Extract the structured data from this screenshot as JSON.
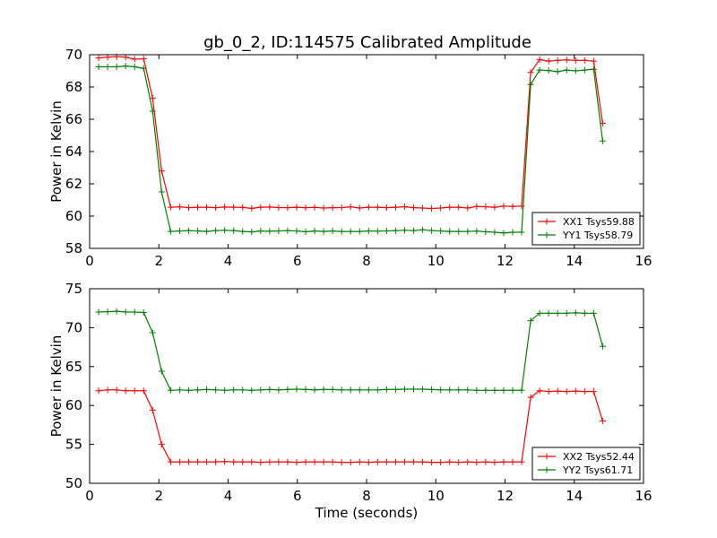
{
  "figure_title": "gb_0_2, ID:114575 Calibrated Amplitude",
  "chart_data": [
    {
      "type": "line",
      "title": "gb_0_2, ID:114575 Calibrated Amplitude",
      "xlabel": "",
      "ylabel": "Power in Kelvin",
      "xlim": [
        0,
        16
      ],
      "ylim": [
        58,
        70
      ],
      "xticks": [
        0,
        2,
        4,
        6,
        8,
        10,
        12,
        14,
        16
      ],
      "yticks": [
        58,
        60,
        62,
        64,
        66,
        68,
        70
      ],
      "xtick_labels": [
        "0",
        "2",
        "4",
        "6",
        "8",
        "10",
        "12",
        "14",
        "16"
      ],
      "ytick_labels": [
        "58",
        "60",
        "62",
        "64",
        "66",
        "68",
        "70"
      ],
      "grid": false,
      "legend_position": "lower-right",
      "series": [
        {
          "name": "XX1 Tsys59.88",
          "color": "#ff0000",
          "marker": "+",
          "x": [
            0.26,
            0.52,
            0.78,
            1.04,
            1.3,
            1.56,
            1.82,
            2.08,
            2.34,
            2.6,
            2.86,
            3.12,
            3.38,
            3.64,
            3.9,
            4.16,
            4.42,
            4.68,
            4.94,
            5.2,
            5.46,
            5.72,
            5.98,
            6.24,
            6.5,
            6.76,
            7.02,
            7.28,
            7.54,
            7.8,
            8.06,
            8.32,
            8.58,
            8.84,
            9.1,
            9.36,
            9.62,
            9.88,
            10.14,
            10.4,
            10.66,
            10.92,
            11.18,
            11.44,
            11.7,
            11.96,
            12.22,
            12.48,
            12.74,
            13.0,
            13.26,
            13.52,
            13.78,
            14.04,
            14.3,
            14.56,
            14.82
          ],
          "y": [
            69.8,
            69.85,
            69.87,
            69.85,
            69.72,
            69.75,
            67.3,
            62.8,
            60.55,
            60.57,
            60.52,
            60.55,
            60.55,
            60.52,
            60.56,
            60.55,
            60.54,
            60.48,
            60.55,
            60.56,
            60.53,
            60.52,
            60.55,
            60.52,
            60.54,
            60.5,
            60.52,
            60.53,
            60.57,
            60.5,
            60.55,
            60.55,
            60.52,
            60.55,
            60.58,
            60.52,
            60.5,
            60.47,
            60.5,
            60.55,
            60.55,
            60.5,
            60.6,
            60.58,
            60.55,
            60.62,
            60.6,
            60.62,
            68.9,
            69.7,
            69.6,
            69.65,
            69.68,
            69.65,
            69.65,
            69.6,
            65.75
          ]
        },
        {
          "name": "YY1 Tsys58.79",
          "color": "#008000",
          "marker": "+",
          "x": [
            0.26,
            0.52,
            0.78,
            1.04,
            1.3,
            1.56,
            1.82,
            2.08,
            2.34,
            2.6,
            2.86,
            3.12,
            3.38,
            3.64,
            3.9,
            4.16,
            4.42,
            4.68,
            4.94,
            5.2,
            5.46,
            5.72,
            5.98,
            6.24,
            6.5,
            6.76,
            7.02,
            7.28,
            7.54,
            7.8,
            8.06,
            8.32,
            8.58,
            8.84,
            9.1,
            9.36,
            9.62,
            9.88,
            10.14,
            10.4,
            10.66,
            10.92,
            11.18,
            11.44,
            11.7,
            11.96,
            12.22,
            12.48,
            12.74,
            13.0,
            13.26,
            13.52,
            13.78,
            14.04,
            14.3,
            14.56,
            14.82
          ],
          "y": [
            69.25,
            69.25,
            69.25,
            69.3,
            69.25,
            69.15,
            66.5,
            61.5,
            59.05,
            59.08,
            59.1,
            59.08,
            59.05,
            59.1,
            59.12,
            59.1,
            59.05,
            59.02,
            59.08,
            59.06,
            59.08,
            59.1,
            59.08,
            59.03,
            59.08,
            59.05,
            59.08,
            59.05,
            59.05,
            59.05,
            59.08,
            59.07,
            59.08,
            59.1,
            59.12,
            59.1,
            59.15,
            59.1,
            59.08,
            59.05,
            59.05,
            59.05,
            59.07,
            59.03,
            59.0,
            58.95,
            59.0,
            59.0,
            68.15,
            69.05,
            69.02,
            68.95,
            69.05,
            69.0,
            69.05,
            69.1,
            64.65
          ]
        }
      ]
    },
    {
      "type": "line",
      "title": "",
      "xlabel": "Time (seconds)",
      "ylabel": "Power in Kelvin",
      "xlim": [
        0,
        16
      ],
      "ylim": [
        50,
        75
      ],
      "xticks": [
        0,
        2,
        4,
        6,
        8,
        10,
        12,
        14,
        16
      ],
      "yticks": [
        50,
        55,
        60,
        65,
        70,
        75
      ],
      "xtick_labels": [
        "0",
        "2",
        "4",
        "6",
        "8",
        "10",
        "12",
        "14",
        "16"
      ],
      "ytick_labels": [
        "50",
        "55",
        "60",
        "65",
        "70",
        "75"
      ],
      "grid": false,
      "legend_position": "lower-right",
      "series": [
        {
          "name": "XX2 Tsys52.44",
          "color": "#ff0000",
          "marker": "+",
          "x": [
            0.26,
            0.52,
            0.78,
            1.04,
            1.3,
            1.56,
            1.82,
            2.08,
            2.34,
            2.6,
            2.86,
            3.12,
            3.38,
            3.64,
            3.9,
            4.16,
            4.42,
            4.68,
            4.94,
            5.2,
            5.46,
            5.72,
            5.98,
            6.24,
            6.5,
            6.76,
            7.02,
            7.28,
            7.54,
            7.8,
            8.06,
            8.32,
            8.58,
            8.84,
            9.1,
            9.36,
            9.62,
            9.88,
            10.14,
            10.4,
            10.66,
            10.92,
            11.18,
            11.44,
            11.7,
            11.96,
            12.22,
            12.48,
            12.74,
            13.0,
            13.26,
            13.52,
            13.78,
            14.04,
            14.3,
            14.56,
            14.82
          ],
          "y": [
            61.9,
            62.0,
            62.0,
            61.9,
            61.9,
            61.9,
            59.4,
            55.0,
            52.75,
            52.75,
            52.75,
            52.75,
            52.75,
            52.75,
            52.8,
            52.75,
            52.75,
            52.75,
            52.7,
            52.75,
            52.75,
            52.75,
            52.7,
            52.75,
            52.75,
            52.75,
            52.75,
            52.7,
            52.7,
            52.75,
            52.7,
            52.75,
            52.75,
            52.75,
            52.75,
            52.75,
            52.75,
            52.7,
            52.7,
            52.75,
            52.7,
            52.75,
            52.7,
            52.75,
            52.7,
            52.75,
            52.75,
            52.75,
            61.05,
            61.9,
            61.8,
            61.85,
            61.8,
            61.85,
            61.8,
            61.8,
            58.0
          ]
        },
        {
          "name": "YY2 Tsys61.71",
          "color": "#008000",
          "marker": "+",
          "x": [
            0.26,
            0.52,
            0.78,
            1.04,
            1.3,
            1.56,
            1.82,
            2.08,
            2.34,
            2.6,
            2.86,
            3.12,
            3.38,
            3.64,
            3.9,
            4.16,
            4.42,
            4.68,
            4.94,
            5.2,
            5.46,
            5.72,
            5.98,
            6.24,
            6.5,
            6.76,
            7.02,
            7.28,
            7.54,
            7.8,
            8.06,
            8.32,
            8.58,
            8.84,
            9.1,
            9.36,
            9.62,
            9.88,
            10.14,
            10.4,
            10.66,
            10.92,
            11.18,
            11.44,
            11.7,
            11.96,
            12.22,
            12.48,
            12.74,
            13.0,
            13.26,
            13.52,
            13.78,
            14.04,
            14.3,
            14.56,
            14.82
          ],
          "y": [
            72.0,
            72.05,
            72.1,
            72.0,
            72.0,
            71.95,
            69.35,
            64.4,
            61.95,
            62.0,
            61.95,
            62.0,
            62.05,
            62.0,
            61.95,
            62.0,
            62.0,
            61.95,
            62.0,
            62.05,
            62.0,
            62.05,
            62.1,
            62.05,
            62.0,
            62.05,
            62.05,
            62.0,
            62.0,
            62.0,
            62.0,
            62.0,
            62.05,
            62.05,
            62.1,
            62.1,
            62.1,
            62.05,
            62.0,
            62.0,
            62.0,
            62.0,
            61.95,
            61.95,
            61.95,
            61.95,
            61.95,
            61.95,
            70.9,
            71.85,
            71.85,
            71.85,
            71.85,
            71.9,
            71.85,
            71.85,
            67.6
          ]
        }
      ]
    }
  ]
}
